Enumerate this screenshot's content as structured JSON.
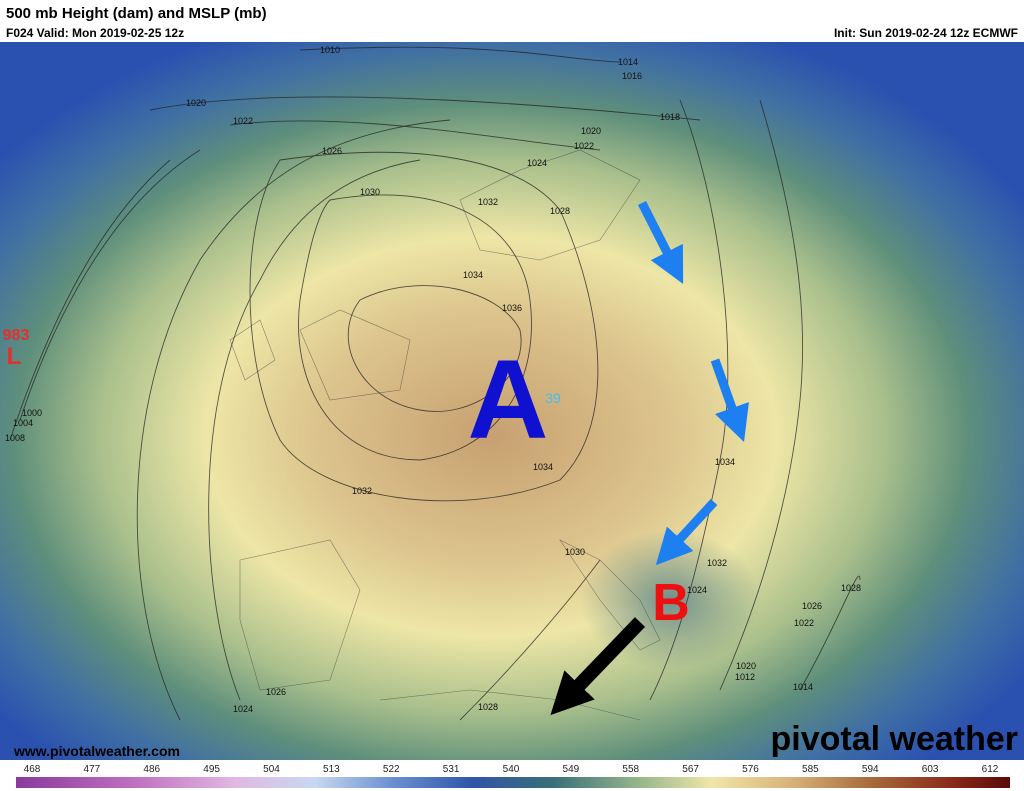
{
  "header": {
    "title": "500 mb Height (dam) and MSLP (mb)",
    "valid": "F024 Valid: Mon 2019-02-25 12z",
    "init": "Init: Sun 2019-02-24 12z ECMWF"
  },
  "map": {
    "isobar_labels": [
      "1010",
      "1014",
      "1016",
      "1020",
      "1022",
      "1018",
      "1020",
      "1022",
      "1026",
      "1024",
      "1030",
      "1032",
      "1028",
      "1034",
      "1036",
      "1000",
      "1004",
      "1008",
      "1034",
      "1034",
      "1032",
      "1030",
      "1032",
      "1024",
      "1028",
      "1026",
      "1022",
      "1020",
      "1012",
      "1014",
      "1026",
      "1024",
      "1028"
    ],
    "low_pressure": {
      "value": "983",
      "symbol": "L"
    },
    "high_center_value": "39",
    "annotations": {
      "high": "A",
      "low": "B"
    },
    "website": "www.pivotalweather.com",
    "logo": "pivotal weather"
  },
  "colorbar": {
    "labels": [
      "468",
      "477",
      "486",
      "495",
      "504",
      "513",
      "522",
      "531",
      "540",
      "549",
      "558",
      "567",
      "576",
      "585",
      "594",
      "603",
      "612"
    ]
  }
}
